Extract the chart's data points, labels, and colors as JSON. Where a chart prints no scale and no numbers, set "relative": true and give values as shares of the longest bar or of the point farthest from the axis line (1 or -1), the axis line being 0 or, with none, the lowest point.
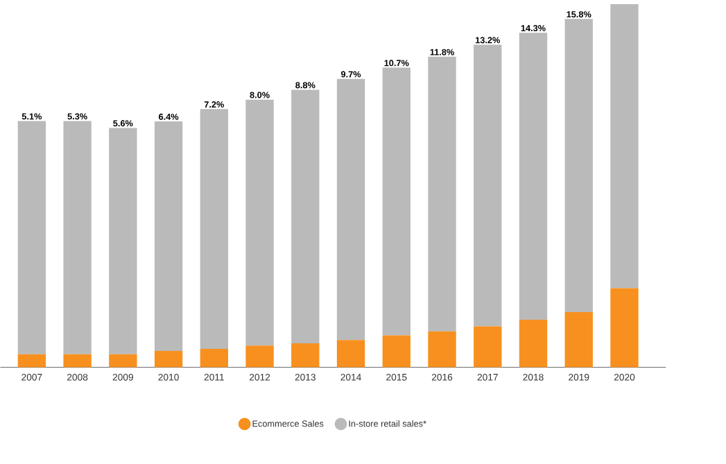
{
  "chart_data": {
    "type": "bar",
    "stacked": true,
    "relative": true,
    "legend": "bottom",
    "categories": [
      "2007",
      "2008",
      "2009",
      "2010",
      "2011",
      "2012",
      "2013",
      "2014",
      "2015",
      "2016",
      "2017",
      "2018",
      "2019",
      "2020"
    ],
    "series": [
      {
        "name": "Ecommerce Sales",
        "color": "#f7901e",
        "values": [
          0.036,
          0.036,
          0.036,
          0.045,
          0.051,
          0.06,
          0.066,
          0.075,
          0.088,
          0.099,
          0.113,
          0.131,
          0.152,
          0.218
        ]
      },
      {
        "name": "In-store retail sales*",
        "color": "#bababa",
        "values": [
          0.642,
          0.642,
          0.623,
          0.632,
          0.66,
          0.677,
          0.698,
          0.719,
          0.737,
          0.756,
          0.775,
          0.79,
          0.807,
          0.782
        ]
      }
    ],
    "annotations": [
      {
        "text": "5.1%",
        "x": "2007",
        "y": 0.678
      },
      {
        "text": "5.3%",
        "x": "2008",
        "y": 0.678
      },
      {
        "text": "5.6%",
        "x": "2009",
        "y": 0.659
      },
      {
        "text": "6.4%",
        "x": "2010",
        "y": 0.677
      },
      {
        "text": "7.2%",
        "x": "2011",
        "y": 0.711
      },
      {
        "text": "8.0%",
        "x": "2012",
        "y": 0.737
      },
      {
        "text": "8.8%",
        "x": "2013",
        "y": 0.764
      },
      {
        "text": "9.7%",
        "x": "2014",
        "y": 0.794
      },
      {
        "text": "10.7%",
        "x": "2015",
        "y": 0.825
      },
      {
        "text": "11.8%",
        "x": "2016",
        "y": 0.855
      },
      {
        "text": "13.2%",
        "x": "2017",
        "y": 0.888
      },
      {
        "text": "14.3%",
        "x": "2018",
        "y": 0.921
      },
      {
        "text": "15.8%",
        "x": "2019",
        "y": 0.959
      }
    ]
  }
}
